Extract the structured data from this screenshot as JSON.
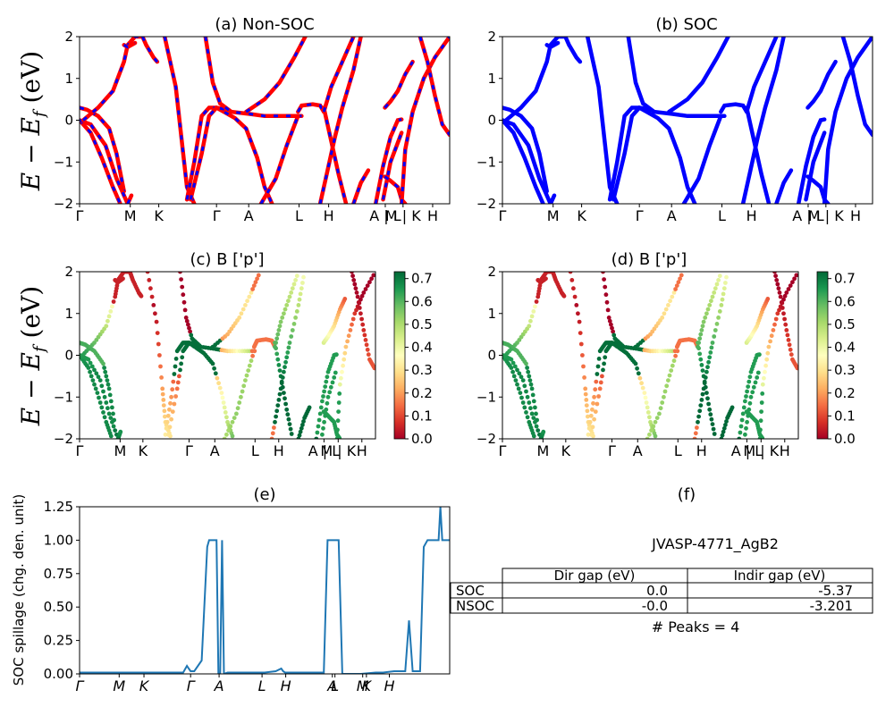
{
  "figure_id": "JVASP-4771_AgB2",
  "colorbar_ticks": [
    "0.0",
    "0.1",
    "0.2",
    "0.3",
    "0.4",
    "0.5",
    "0.6",
    "0.7"
  ],
  "colors": {
    "nonsoc_a": "#ff0000",
    "nonsoc_b": "#0000ff",
    "soc": "#0000ff",
    "spillage": "#1f77b4"
  },
  "chart_data": [
    {
      "id": "a",
      "type": "line",
      "title": "(a) Non-SOC",
      "ylabel": "E - E_f (eV)",
      "ylim": [
        -2,
        2
      ],
      "yticks": [
        "-2",
        "-1",
        "0",
        "1",
        "2"
      ],
      "x_tick_labels": [
        "Γ",
        "M",
        "K",
        "Γ",
        "A",
        "L",
        "H",
        "A | L",
        "M | K",
        "H"
      ],
      "series": [
        {
          "x": [
            0,
            0.02,
            0.05,
            0.08,
            0.1,
            0.12
          ],
          "y": [
            0.3,
            0.25,
            0.1,
            -0.2,
            -0.8,
            -1.7
          ]
        },
        {
          "x": [
            0,
            0.03,
            0.06,
            0.09,
            0.11
          ],
          "y": [
            0,
            -0.3,
            -0.9,
            -1.6,
            -2.0
          ]
        },
        {
          "x": [
            0,
            0.03,
            0.07,
            0.1,
            0.13,
            0.14
          ],
          "y": [
            0,
            -0.1,
            -0.6,
            -1.4,
            -2.0,
            -1.8
          ]
        },
        {
          "x": [
            0.01,
            0.05,
            0.09,
            0.12,
            0.13,
            0.15,
            0.17
          ],
          "y": [
            0,
            0.3,
            0.7,
            1.4,
            1.8,
            2.0,
            2.0
          ]
        },
        {
          "x": [
            0.12,
            0.13,
            0.15
          ],
          "y": [
            1.8,
            1.75,
            1.85
          ]
        },
        {
          "x": [
            0.17,
            0.18,
            0.2,
            0.21
          ],
          "y": [
            2.0,
            1.8,
            1.5,
            1.4
          ]
        },
        {
          "x": [
            0.23,
            0.26,
            0.28,
            0.29,
            0.31
          ],
          "y": [
            2.0,
            0.8,
            -0.8,
            -1.6,
            -2.0
          ]
        },
        {
          "x": [
            0.29,
            0.31,
            0.33,
            0.35,
            0.37,
            0.39,
            0.42,
            0.45,
            0.48,
            0.5,
            0.52
          ],
          "y": [
            -1.9,
            -1.0,
            0.1,
            0.3,
            0.3,
            0.2,
            0.05,
            -0.2,
            -0.9,
            -1.6,
            -2.0
          ]
        },
        {
          "x": [
            0.3,
            0.33,
            0.35,
            0.37,
            0.4
          ],
          "y": [
            -1.9,
            -0.8,
            0.1,
            0.3,
            0.25
          ]
        },
        {
          "x": [
            0.34,
            0.36,
            0.38,
            0.41,
            0.46,
            0.5,
            0.55,
            0.6
          ],
          "y": [
            2.0,
            0.9,
            0.4,
            0.2,
            0.15,
            0.1,
            0.1,
            0.1
          ]
        },
        {
          "x": [
            0.45,
            0.5,
            0.54,
            0.58,
            0.61
          ],
          "y": [
            0.2,
            0.5,
            0.9,
            1.5,
            2.0
          ]
        },
        {
          "x": [
            0.49,
            0.53,
            0.56,
            0.59
          ],
          "y": [
            -2.0,
            -1.4,
            -0.6,
            0.1
          ]
        },
        {
          "x": [
            0.59,
            0.6,
            0.63,
            0.65,
            0.66
          ],
          "y": [
            0.2,
            0.35,
            0.38,
            0.35,
            0.2
          ]
        },
        {
          "x": [
            0.66,
            0.68,
            0.7,
            0.72
          ],
          "y": [
            0.3,
            -0.5,
            -1.3,
            -2.0
          ]
        },
        {
          "x": [
            0.66,
            0.68,
            0.71,
            0.74
          ],
          "y": [
            0.2,
            0.8,
            1.4,
            2.0
          ]
        },
        {
          "x": [
            0.65,
            0.67,
            0.69,
            0.71,
            0.74,
            0.76
          ],
          "y": [
            -2.0,
            -1.2,
            -0.4,
            0.3,
            1.2,
            2.0
          ]
        },
        {
          "x": [
            0.74,
            0.76,
            0.78
          ],
          "y": [
            -2.0,
            -1.5,
            -1.2
          ]
        },
        {
          "x": [
            0.8,
            0.82,
            0.84,
            0.86,
            0.87
          ],
          "y": [
            -2.0,
            -1.1,
            -0.4,
            0.0,
            0.02
          ]
        },
        {
          "x": [
            0.82,
            0.84,
            0.87
          ],
          "y": [
            -1.9,
            -1.0,
            -0.3
          ]
        },
        {
          "x": [
            0.825,
            0.84,
            0.86,
            0.87,
            0.88
          ],
          "y": [
            -1.35,
            -1.45,
            -1.6,
            -1.9,
            -2.0
          ]
        },
        {
          "x": [
            0.825,
            0.84,
            0.86,
            0.88,
            0.9
          ],
          "y": [
            0.3,
            0.45,
            0.7,
            1.1,
            1.4
          ]
        },
        {
          "x": [
            0.87,
            0.88,
            0.9,
            0.93,
            0.96,
            1.0
          ],
          "y": [
            -2.0,
            -0.7,
            0.2,
            1.0,
            1.5,
            2.0
          ]
        },
        {
          "x": [
            0.92,
            0.94,
            0.96,
            0.98,
            1.0
          ],
          "y": [
            2.0,
            1.4,
            0.6,
            -0.1,
            -0.35
          ]
        }
      ]
    },
    {
      "id": "b",
      "type": "line",
      "title": "(b) SOC",
      "ylim": [
        -2,
        2
      ],
      "yticks": [
        "-2",
        "-1",
        "0",
        "1",
        "2"
      ],
      "x_tick_labels": [
        "Γ",
        "M",
        "K",
        "Γ",
        "A",
        "L",
        "H",
        "A | L",
        "M | K",
        "H"
      ],
      "series": "same bands as (a)"
    },
    {
      "id": "c",
      "type": "scatter",
      "title": "(c)  B ['p']",
      "ylabel": "E - E_f (eV)",
      "ylim": [
        -2,
        2
      ],
      "yticks": [
        "-2",
        "-1",
        "0",
        "1",
        "2"
      ],
      "x_tick_labels": [
        "Γ",
        "M",
        "K",
        "Γ",
        "A",
        "L",
        "H",
        "A | L",
        "M | K",
        "H"
      ],
      "colorbar": {
        "min": 0.0,
        "max": 0.73
      },
      "note": "Same band lines as (a), markers colored by B p-projection (0=red, 0.7=green)"
    },
    {
      "id": "d",
      "type": "scatter",
      "title": "(d) B ['p']",
      "ylim": [
        -2,
        2
      ],
      "yticks": [
        "-2",
        "-1",
        "0",
        "1",
        "2"
      ],
      "x_tick_labels": [
        "Γ",
        "M",
        "K",
        "Γ",
        "A",
        "L",
        "H",
        "A | L",
        "M | K",
        "H"
      ],
      "colorbar": {
        "min": 0.0,
        "max": 0.73
      }
    },
    {
      "id": "e",
      "type": "line",
      "title": "(e)",
      "ylabel": "SOC spillage (chg. den. unit)",
      "ylim": [
        0,
        1.25
      ],
      "yticks": [
        "0.00",
        "0.25",
        "0.50",
        "0.75",
        "1.00",
        "1.25"
      ],
      "x_tick_labels": [
        "Γ",
        "M",
        "K",
        "Γ",
        "A",
        "L",
        "H",
        "A",
        "L",
        "M",
        "K",
        "H"
      ],
      "series": [
        {
          "x": [
            0,
            0.1,
            0.2,
            0.28,
            0.29,
            0.295,
            0.3,
            0.31,
            0.33,
            0.345,
            0.35,
            0.36,
            0.37,
            0.375,
            0.38,
            0.385,
            0.39,
            0.4,
            0.45,
            0.5,
            0.53,
            0.545,
            0.55,
            0.555,
            0.56,
            0.6,
            0.65,
            0.66,
            0.67,
            0.69,
            0.7,
            0.71,
            0.72,
            0.76,
            0.8,
            0.81,
            0.82,
            0.85,
            0.88,
            0.89,
            0.9,
            0.91,
            0.92,
            0.93,
            0.94,
            0.95,
            0.96,
            0.97,
            0.975,
            0.98,
            0.99,
            1.0
          ],
          "y": [
            0.01,
            0.01,
            0.01,
            0.01,
            0.06,
            0.04,
            0.02,
            0.02,
            0.1,
            0.95,
            1.0,
            1.0,
            1.0,
            0.0,
            0.0,
            1.0,
            0.0,
            0.01,
            0.01,
            0.01,
            0.02,
            0.04,
            0.02,
            0.01,
            0.01,
            0.01,
            0.01,
            0.01,
            1.0,
            1.0,
            1.0,
            0.0,
            0.0,
            0.0,
            0.01,
            0.01,
            0.01,
            0.02,
            0.02,
            0.4,
            0.02,
            0.02,
            0.02,
            0.95,
            1.0,
            1.0,
            1.0,
            1.0,
            1.25,
            1.0,
            1.0,
            1.0
          ]
        }
      ]
    },
    {
      "id": "f",
      "type": "table",
      "title": "(f)",
      "subtitle": "JVASP-4771_AgB2",
      "columns": [
        "Dir gap (eV)",
        "Indir gap (eV)"
      ],
      "rows": [
        {
          "label": "SOC",
          "values": [
            "0.0",
            "-5.37"
          ]
        },
        {
          "label": "NSOC",
          "values": [
            "-0.0",
            "-3.201"
          ]
        }
      ],
      "footer": "# Peaks = 4"
    }
  ]
}
